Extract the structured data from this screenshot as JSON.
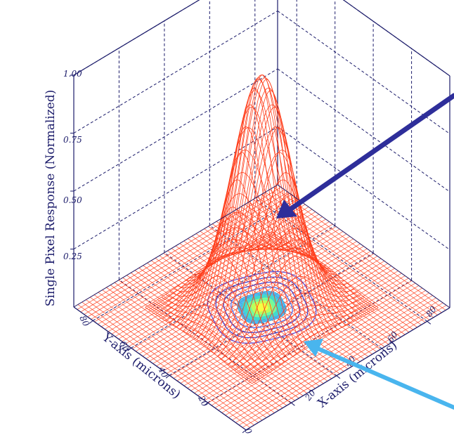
{
  "chart_data": {
    "type": "surface-3d",
    "zlabel": "Single Pixel Response (Normalized)",
    "xlabel": "X-axis (microns)",
    "ylabel": "Y-axis (microns)",
    "z_ticks": [
      "1.00",
      "0.75",
      "0.50",
      "0.25"
    ],
    "z_tick_values": [
      1.0,
      0.75,
      0.5,
      0.25
    ],
    "x_ticks": [
      "20",
      "40",
      "60",
      "80"
    ],
    "x_tick_values": [
      20,
      40,
      60,
      80
    ],
    "y_ticks": [
      "0",
      "20",
      "40",
      "60",
      "80"
    ],
    "y_tick_values": [
      0,
      20,
      40,
      60,
      80
    ],
    "xlim": [
      0,
      90
    ],
    "ylim": [
      0,
      90
    ],
    "zlim": [
      0,
      1.0
    ],
    "peak": {
      "x": 45,
      "y": 45,
      "z": 1.0
    },
    "surface_sigma_microns": 10,
    "grid": true,
    "colors": {
      "surface": "#ff3d1a",
      "box": "#1b1b6a",
      "contours": "#3f3fd0",
      "arrow_surface": "#2e2e9a",
      "arrow_contour": "#49b5ee"
    }
  }
}
